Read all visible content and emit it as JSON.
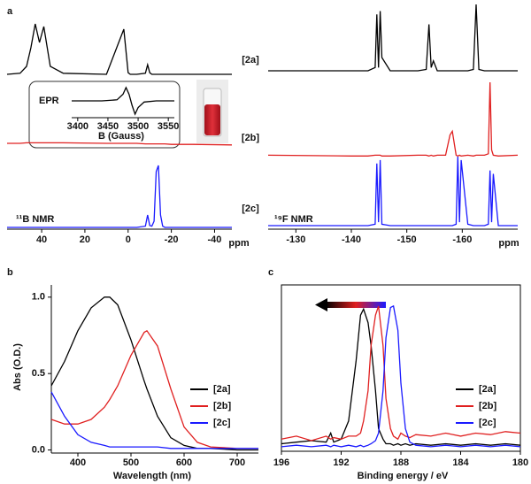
{
  "chart_data": [
    {
      "type": "line",
      "panel_label": "a",
      "label": "¹¹B NMR",
      "x_unit": "ppm",
      "xlim": [
        56,
        -48
      ],
      "xticks": [
        40,
        20,
        0,
        -20,
        -40
      ],
      "x": [
        56,
        50,
        47,
        45,
        43,
        41,
        39,
        36,
        30,
        10,
        2,
        0,
        -1,
        -2,
        -4,
        -8,
        -9,
        -10,
        -11,
        -12,
        -13,
        -14,
        -15,
        -16,
        -17,
        -20,
        -30,
        -48
      ],
      "series": [
        {
          "name": "[2a]",
          "color": "#000000",
          "values": [
            0,
            0.02,
            0.15,
            0.5,
            0.95,
            0.6,
            0.9,
            0.15,
            0.02,
            0,
            0.85,
            0.03,
            0,
            0,
            0,
            0.02,
            0.18,
            0.03,
            0,
            0,
            0,
            0,
            0,
            0,
            0,
            0,
            0,
            0
          ]
        },
        {
          "name": "[2b]",
          "color": "#e02020",
          "values": [
            0.05,
            0.05,
            0.06,
            0.06,
            0.06,
            0.06,
            0.06,
            0.06,
            0.06,
            0.05,
            0.05,
            0.05,
            0.05,
            0.05,
            0.05,
            0.04,
            0.04,
            0.04,
            0.04,
            0.04,
            0.04,
            0.04,
            0.04,
            0.04,
            0.04,
            0.03,
            0.03,
            0.02
          ]
        },
        {
          "name": "[2c]",
          "color": "#1a1aff",
          "values": [
            0,
            0,
            0,
            0,
            0,
            0,
            0,
            0,
            0,
            0,
            0,
            0,
            0,
            0,
            0,
            0.02,
            0.2,
            0.03,
            0.02,
            0.1,
            0.9,
            1.0,
            0.2,
            0.02,
            0,
            0,
            0,
            0
          ]
        }
      ]
    },
    {
      "type": "line",
      "label": "¹⁹F NMR",
      "x_unit": "ppm",
      "xlim": [
        -125,
        -170
      ],
      "xticks": [
        -130,
        -140,
        -150,
        -160
      ],
      "x": [
        -125,
        -140,
        -143,
        -144.3,
        -144.6,
        -144.9,
        -145.2,
        -145.5,
        -147,
        -152,
        -153.5,
        -154,
        -154.4,
        -154.8,
        -155.5,
        -157,
        -157.8,
        -158.2,
        -158.9,
        -159.2,
        -159.5,
        -159.8,
        -161,
        -162,
        -162.5,
        -163,
        -164,
        -164.7,
        -165,
        -165.3,
        -165.6,
        -166.5,
        -170
      ],
      "series": [
        {
          "color": "#000000",
          "values": [
            0,
            0,
            0,
            0.05,
            0.85,
            0.05,
            0.9,
            0.2,
            0,
            0,
            0.02,
            0.7,
            0.05,
            0.15,
            0,
            0,
            0,
            0,
            0,
            0,
            0,
            0,
            0,
            0.02,
            1.0,
            0.02,
            0,
            0,
            0,
            0,
            0,
            0,
            0
          ]
        },
        {
          "color": "#e02020",
          "values": [
            0.03,
            0.02,
            0.02,
            0.03,
            0.03,
            0.03,
            0.03,
            0.02,
            0.02,
            0.03,
            0.03,
            0.02,
            0.03,
            0.02,
            0.03,
            0.03,
            0.3,
            0.35,
            0.03,
            0.02,
            0.03,
            0.02,
            0.03,
            0.02,
            0.03,
            0.03,
            0.03,
            0.05,
            1.0,
            0.1,
            0.03,
            0.02,
            0.03
          ]
        },
        {
          "color": "#1a1aff",
          "values": [
            0,
            0,
            0,
            0.02,
            0.9,
            0.05,
            0.95,
            0.02,
            0,
            0,
            0,
            0,
            0,
            0,
            0,
            0,
            0,
            0,
            0.02,
            1.0,
            0.05,
            0.95,
            0.02,
            0,
            0,
            0,
            0,
            0.02,
            0.8,
            0.05,
            0.75,
            0,
            0
          ]
        }
      ]
    },
    {
      "type": "line",
      "label": "EPR",
      "xlabel": "B (Gauss)",
      "xlim": [
        3390,
        3560
      ],
      "xticks": [
        3400,
        3450,
        3500,
        3550
      ],
      "x": [
        3390,
        3440,
        3465,
        3475,
        3480,
        3485,
        3490,
        3495,
        3500,
        3510,
        3530,
        3560
      ],
      "series": [
        {
          "color": "#000000",
          "values": [
            0,
            0,
            0.05,
            0.3,
            0.6,
            0.3,
            -0.2,
            -0.6,
            -0.3,
            -0.05,
            0,
            0
          ]
        }
      ]
    },
    {
      "type": "line",
      "panel_label": "b",
      "xlabel": "Wavelength (nm)",
      "ylabel": "Abs (O.D.)",
      "xlim": [
        350,
        740
      ],
      "xticks": [
        400,
        500,
        600,
        700
      ],
      "ylim": [
        -0.02,
        1.08
      ],
      "yticks": [
        {
          "value": 0,
          "label": "0.0"
        },
        {
          "value": 0.5,
          "label": "0.5"
        },
        {
          "value": 1,
          "label": "1.0"
        }
      ],
      "x": [
        350,
        375,
        400,
        425,
        450,
        460,
        475,
        500,
        525,
        530,
        550,
        575,
        600,
        625,
        650,
        700,
        740
      ],
      "series": [
        {
          "name": "[2a]",
          "color": "#000000",
          "values": [
            0.42,
            0.58,
            0.78,
            0.93,
            1.0,
            1.0,
            0.95,
            0.72,
            0.45,
            0.4,
            0.22,
            0.08,
            0.03,
            0.01,
            0.01,
            0,
            0
          ]
        },
        {
          "name": "[2b]",
          "color": "#e02020",
          "values": [
            0.2,
            0.17,
            0.17,
            0.2,
            0.28,
            0.33,
            0.42,
            0.62,
            0.77,
            0.78,
            0.68,
            0.4,
            0.15,
            0.05,
            0.02,
            0.01,
            0.01
          ]
        },
        {
          "name": "[2c]",
          "color": "#1a1aff",
          "values": [
            0.38,
            0.22,
            0.1,
            0.05,
            0.03,
            0.02,
            0.02,
            0.02,
            0.02,
            0.02,
            0.02,
            0.01,
            0.01,
            0.01,
            0.01,
            0.01,
            0.01
          ]
        }
      ]
    },
    {
      "type": "line",
      "panel_label": "c",
      "xlabel": "Binding energy / eV",
      "xlim": [
        196,
        180
      ],
      "xticks": [
        196,
        192,
        188,
        184,
        180
      ],
      "ylim": [
        0,
        1.1
      ],
      "x": [
        196,
        195,
        194,
        193,
        192.7,
        192.5,
        192,
        191.5,
        191,
        190.7,
        190.5,
        190.2,
        190,
        189.7,
        189.5,
        189.2,
        189,
        188.7,
        188.5,
        188.2,
        188,
        187.7,
        187.4,
        187,
        186,
        185,
        184,
        183,
        182,
        181,
        180
      ],
      "series": [
        {
          "name": "[2a]",
          "color": "#000000",
          "values": [
            0.05,
            0.06,
            0.07,
            0.06,
            0.12,
            0.06,
            0.08,
            0.2,
            0.6,
            0.9,
            0.94,
            0.85,
            0.7,
            0.4,
            0.15,
            0.08,
            0.05,
            0.05,
            0.04,
            0.05,
            0.04,
            0.05,
            0.04,
            0.05,
            0.04,
            0.05,
            0.04,
            0.05,
            0.04,
            0.05,
            0.04
          ]
        },
        {
          "name": "[2b]",
          "color": "#e02020",
          "values": [
            0.08,
            0.1,
            0.07,
            0.1,
            0.08,
            0.09,
            0.08,
            0.1,
            0.1,
            0.12,
            0.2,
            0.4,
            0.7,
            0.9,
            0.96,
            0.7,
            0.35,
            0.15,
            0.1,
            0.08,
            0.12,
            0.1,
            0.09,
            0.11,
            0.1,
            0.12,
            0.1,
            0.12,
            0.11,
            0.13,
            0.12
          ]
        },
        {
          "name": "[2c]",
          "color": "#1a1aff",
          "values": [
            0.03,
            0.04,
            0.03,
            0.04,
            0.03,
            0.04,
            0.03,
            0.04,
            0.03,
            0.04,
            0.03,
            0.04,
            0.05,
            0.07,
            0.12,
            0.4,
            0.75,
            0.95,
            0.96,
            0.8,
            0.45,
            0.15,
            0.06,
            0.04,
            0.03,
            0.04,
            0.03,
            0.04,
            0.03,
            0.04,
            0.03
          ]
        }
      ]
    }
  ]
}
